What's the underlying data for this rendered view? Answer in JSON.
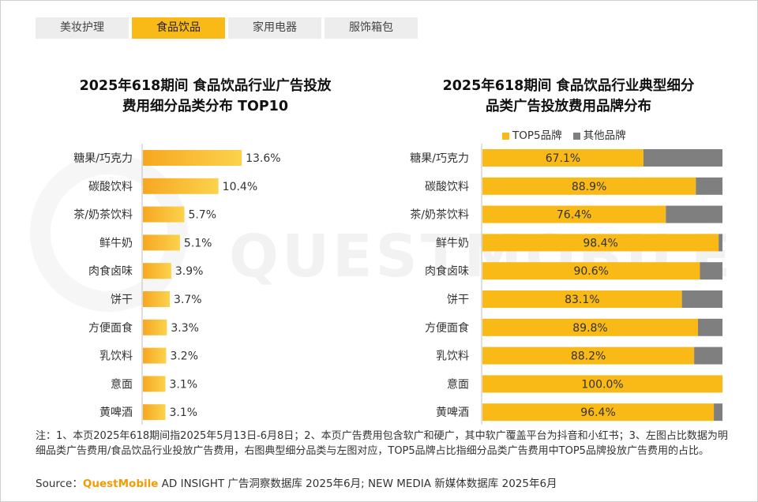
{
  "tabs": [
    {
      "label": "美妆护理",
      "active": false
    },
    {
      "label": "食品饮品",
      "active": true
    },
    {
      "label": "家用电器",
      "active": false
    },
    {
      "label": "服饰箱包",
      "active": false
    }
  ],
  "left_title": [
    "2025年618期间 食品饮品行业广告投放",
    "费用细分品类分布 TOP10"
  ],
  "right_title": [
    "2025年618期间 食品饮品行业典型细分",
    "品类广告投放费用品牌分布"
  ],
  "watermark": "QUESTMOBILE",
  "colors": {
    "accent": "#f9b917",
    "bar_light": "#fbc84a",
    "other": "#7f7f7f"
  },
  "chart_data": [
    {
      "type": "bar",
      "orientation": "horizontal",
      "title": "2025年618期间 食品饮品行业广告投放费用细分品类分布 TOP10",
      "categories": [
        "糖果/巧克力",
        "碳酸饮料",
        "茶/奶茶饮料",
        "鲜牛奶",
        "肉食卤味",
        "饼干",
        "方便面食",
        "乳饮料",
        "意面",
        "黄啤酒"
      ],
      "values": [
        13.6,
        10.4,
        5.7,
        5.1,
        3.9,
        3.7,
        3.3,
        3.2,
        3.1,
        3.1
      ],
      "value_labels": [
        "13.6%",
        "10.4%",
        "5.7%",
        "5.1%",
        "3.9%",
        "3.7%",
        "3.3%",
        "3.2%",
        "3.1%",
        "3.1%"
      ],
      "unit": "%"
    },
    {
      "type": "bar",
      "orientation": "horizontal",
      "stacked": true,
      "title": "2025年618期间 食品饮品行业典型细分品类广告投放费用品牌分布",
      "categories": [
        "糖果/巧克力",
        "碳酸饮料",
        "茶/奶茶饮料",
        "鲜牛奶",
        "肉食卤味",
        "饼干",
        "方便面食",
        "乳饮料",
        "意面",
        "黄啤酒"
      ],
      "series": [
        {
          "name": "TOP5品牌",
          "values": [
            67.1,
            88.9,
            76.4,
            98.4,
            90.6,
            83.1,
            89.8,
            88.2,
            100.0,
            96.4
          ],
          "labels": [
            "67.1%",
            "88.9%",
            "76.4%",
            "98.4%",
            "90.6%",
            "83.1%",
            "89.8%",
            "88.2%",
            "100.0%",
            "96.4%"
          ]
        },
        {
          "name": "其他品牌",
          "values": [
            32.9,
            11.1,
            23.6,
            1.6,
            9.4,
            16.9,
            10.2,
            11.8,
            0.0,
            3.6
          ]
        }
      ],
      "legend_position": "top-right",
      "xlim": [
        0,
        100
      ]
    }
  ],
  "note": "注：1、本页2025年618期间指2025年5月13日-6月8日；2、本页广告费用包含软广和硬广，其中软广覆盖平台为抖音和小红书；3、左图占比数据为明细品类广告费用/食品饮品行业投放广告费用，右图典型细分品类与左图对应，TOP5品牌占比指细分品类广告费用中TOP5品牌投放广告费用的占比。",
  "source": {
    "prefix": "Source：",
    "brand": "QuestMobile",
    "rest": " AD INSIGHT 广告洞察数据库 2025年6月; NEW MEDIA 新媒体数据库 2025年6月"
  }
}
